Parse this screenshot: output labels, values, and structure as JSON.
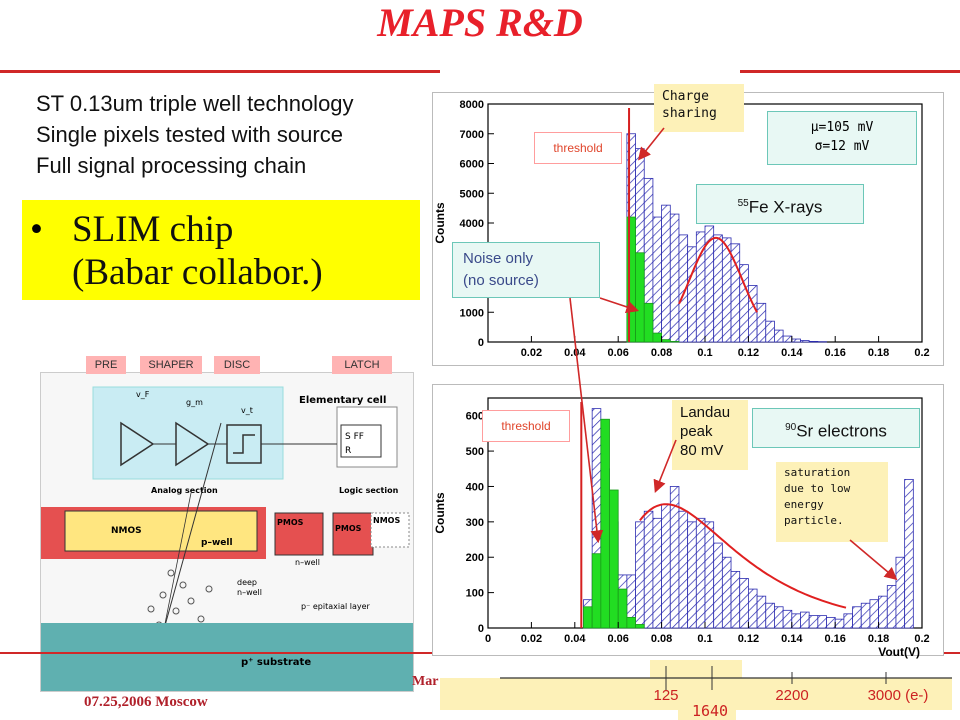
{
  "title": "MAPS R&D",
  "intro_lines": [
    "ST 0.13um triple well technology",
    "Single pixels tested with source",
    "Full signal processing chain"
  ],
  "slim": {
    "bullet": "•",
    "line1": "SLIM chip",
    "line2": "(Babar collabor.)"
  },
  "circuit": {
    "blocks": [
      "PRE",
      "SHAPER",
      "DISC",
      "LATCH"
    ],
    "elementary_cell": "Elementary cell",
    "analog_section": "Analog section",
    "logic_section": "Logic section",
    "nmos": "NMOS",
    "pwell": "p–well",
    "pmos": "PMOS",
    "pmos2": "PMOS",
    "nmos2": "NMOS",
    "nwell": "n–well",
    "deep_nwell_1": "deep",
    "deep_nwell_2": "n–well",
    "epi": "p⁻ epitaxial layer",
    "substrate": "p⁺ substrate",
    "sff": "S FF",
    "r": "R",
    "vf": "v_F",
    "gm": "g_m",
    "vt": "v_t"
  },
  "footer": {
    "date": "07.25,2006 Moscow",
    "partial": "Mar"
  },
  "callouts": {
    "charge_sharing": "Charge sharing",
    "threshold_top": "threshold",
    "threshold_bottom": "threshold",
    "mu": "μ=105 mV",
    "sigma": "σ=12 mV",
    "fe55_sup": "55",
    "fe55": "Fe X-rays",
    "noise_1": "Noise only",
    "noise_2": "(no source)",
    "landau_1": "Landau",
    "landau_2": "peak",
    "landau_3": "80 mV",
    "sr90_sup": "90",
    "sr90": "Sr electrons",
    "sat_1": "saturation",
    "sat_2": "due to low",
    "sat_3": "energy",
    "sat_4": "particle."
  },
  "electron_axis": {
    "labels": [
      "125",
      "1640",
      "2200",
      "3000 (e-)"
    ]
  },
  "chart_data": [
    {
      "type": "bar",
      "title": "",
      "xlabel": "",
      "ylabel": "Counts",
      "xlim": [
        0,
        0.2
      ],
      "ylim": [
        0,
        8000
      ],
      "x_ticks": [
        "0.02",
        "0.04",
        "0.06",
        "0.08",
        "0.1",
        "0.12",
        "0.14",
        "0.16",
        "0.18",
        "0.2"
      ],
      "y_ticks": [
        "0",
        "1000",
        "2000",
        "3000",
        "4000",
        "5000",
        "6000",
        "7000",
        "8000"
      ],
      "threshold": 0.065,
      "series": [
        {
          "name": "",
          "style": "hatched-blue",
          "x": [
            0.064,
            0.068,
            0.072,
            0.076,
            0.08,
            0.084,
            0.088,
            0.092,
            0.096,
            0.1,
            0.104,
            0.108,
            0.112,
            0.116,
            0.12,
            0.124,
            0.128,
            0.132,
            0.136,
            0.14,
            0.144,
            0.148,
            0.152,
            0.156
          ],
          "values": [
            7000,
            6500,
            5500,
            4200,
            4600,
            4300,
            3600,
            3200,
            3700,
            3900,
            3600,
            3500,
            3300,
            2600,
            1900,
            1300,
            700,
            400,
            200,
            100,
            50,
            20,
            10,
            0
          ]
        },
        {
          "name": "",
          "style": "green",
          "x": [
            0.064,
            0.068,
            0.072,
            0.076,
            0.08,
            0.084,
            0.088
          ],
          "values": [
            4200,
            3000,
            1300,
            300,
            80,
            20,
            0
          ]
        }
      ],
      "fit": {
        "type": "gaussian",
        "mu": 0.105,
        "sigma": 0.012,
        "amplitude": 3500,
        "range": [
          0.088,
          0.124
        ]
      }
    },
    {
      "type": "bar",
      "title": "",
      "xlabel": "Vout(V)",
      "ylabel": "Counts",
      "xlim": [
        0,
        0.2
      ],
      "ylim": [
        0,
        650
      ],
      "x_ticks": [
        "0",
        "0.02",
        "0.04",
        "0.06",
        "0.08",
        "0.1",
        "0.12",
        "0.14",
        "0.16",
        "0.18",
        "0.2"
      ],
      "y_ticks": [
        "0",
        "100",
        "200",
        "300",
        "400",
        "500",
        "600"
      ],
      "threshold": 0.043,
      "series": [
        {
          "name": "",
          "style": "hatched-blue",
          "x": [
            0.044,
            0.048,
            0.052,
            0.056,
            0.06,
            0.064,
            0.068,
            0.072,
            0.076,
            0.08,
            0.084,
            0.088,
            0.092,
            0.096,
            0.1,
            0.104,
            0.108,
            0.112,
            0.116,
            0.12,
            0.124,
            0.128,
            0.132,
            0.136,
            0.14,
            0.144,
            0.148,
            0.152,
            0.156,
            0.16,
            0.164,
            0.168,
            0.172,
            0.176,
            0.18,
            0.184,
            0.188,
            0.192
          ],
          "values": [
            80,
            620,
            450,
            300,
            150,
            150,
            300,
            330,
            310,
            350,
            400,
            330,
            300,
            310,
            300,
            240,
            200,
            160,
            140,
            110,
            90,
            70,
            60,
            50,
            40,
            45,
            35,
            35,
            30,
            25,
            40,
            60,
            70,
            80,
            90,
            120,
            200,
            420
          ]
        },
        {
          "name": "",
          "style": "green",
          "x": [
            0.044,
            0.048,
            0.052,
            0.056,
            0.06,
            0.064,
            0.068,
            0.072
          ],
          "values": [
            60,
            210,
            590,
            390,
            110,
            30,
            10,
            0
          ]
        }
      ],
      "fit": {
        "type": "landau",
        "mpv": 0.082,
        "amplitude": 350,
        "range": [
          0.07,
          0.165
        ]
      }
    }
  ]
}
